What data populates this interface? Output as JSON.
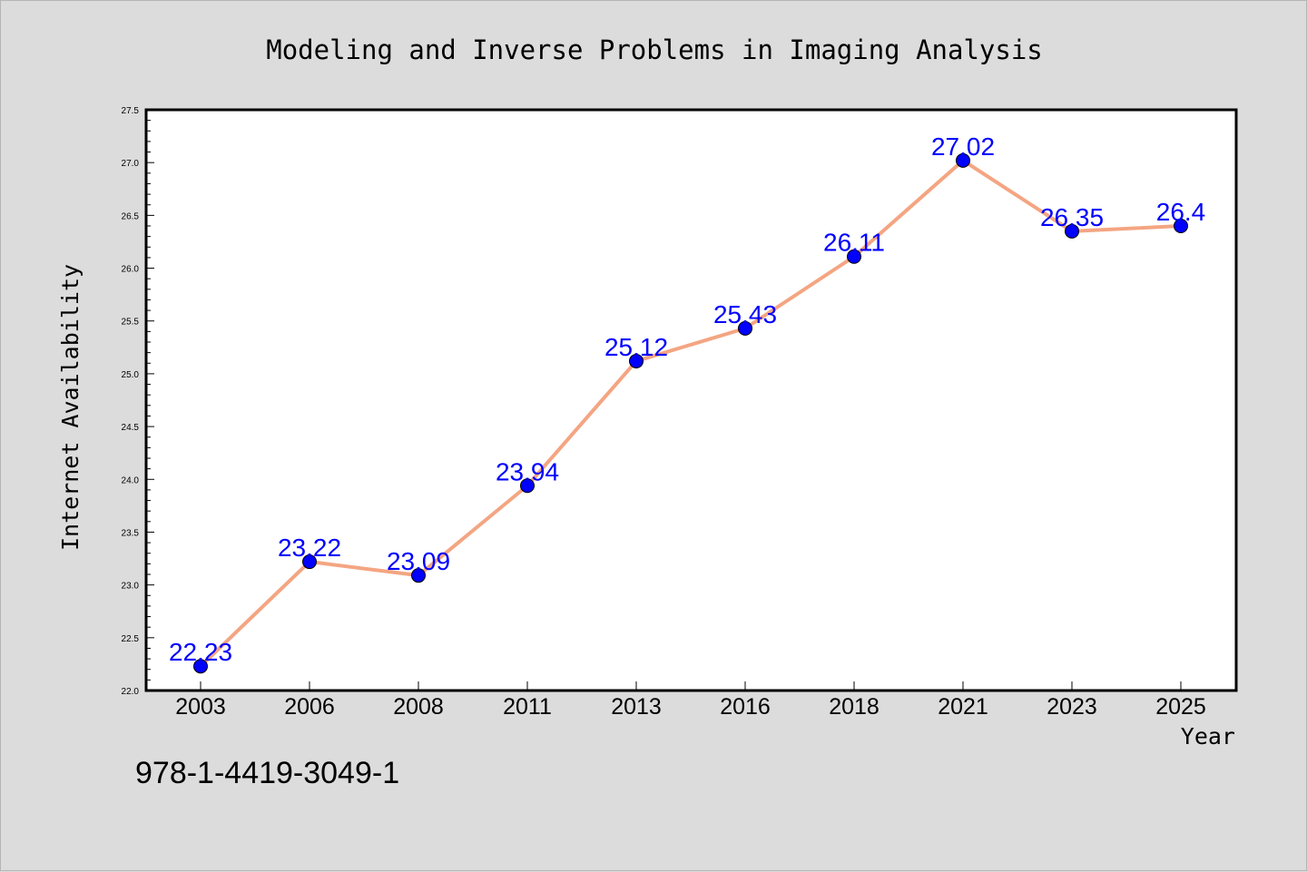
{
  "chart_data": {
    "type": "line",
    "title": "Modeling and Inverse Problems in Imaging Analysis",
    "xlabel": "Year",
    "ylabel": "Internet Availability",
    "categories": [
      "2003",
      "2006",
      "2008",
      "2011",
      "2013",
      "2016",
      "2018",
      "2021",
      "2023",
      "2025"
    ],
    "values": [
      22.23,
      23.22,
      23.09,
      23.94,
      25.12,
      25.43,
      26.11,
      27.02,
      26.35,
      26.4
    ],
    "data_labels": [
      "22.23",
      "23.22",
      "23.09",
      "23.94",
      "25.12",
      "25.43",
      "26.11",
      "27.02",
      "26.35",
      "26.4"
    ],
    "ylim": [
      22.0,
      27.5
    ],
    "yticks": [
      "22.0",
      "22.5",
      "23.0",
      "23.5",
      "24.0",
      "24.5",
      "25.0",
      "25.5",
      "26.0",
      "26.5",
      "27.0",
      "27.5"
    ],
    "grid": false,
    "line_color": "#f4a582",
    "marker_color": "#0000ff",
    "label_color": "#0000ff",
    "plot_background": "#ffffff",
    "figure_background": "#dcdcdc"
  },
  "footer": {
    "isbn": "978-1-4419-3049-1"
  }
}
